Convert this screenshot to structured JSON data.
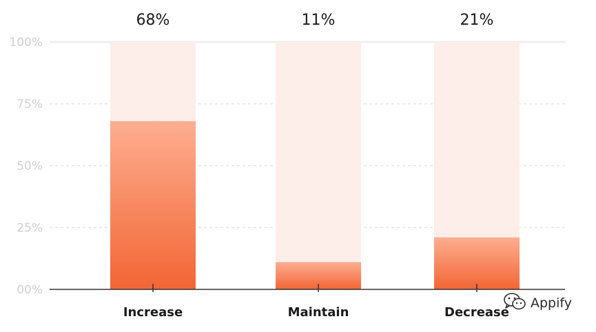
{
  "chart_data": {
    "type": "bar",
    "categories": [
      "Increase",
      "Maintain",
      "Decrease"
    ],
    "values": [
      68,
      11,
      21
    ],
    "value_labels": [
      "68%",
      "11%",
      "21%"
    ],
    "y_ticks": [
      {
        "value": 0,
        "label": "00%"
      },
      {
        "value": 25,
        "label": "25%"
      },
      {
        "value": 50,
        "label": "50%"
      },
      {
        "value": 75,
        "label": "75%"
      },
      {
        "value": 100,
        "label": "100%"
      }
    ],
    "ylim": [
      0,
      100
    ],
    "grid": true,
    "colors": {
      "bar_top": "#fdae90",
      "bar_bottom": "#f26535",
      "track": "#fdeee9",
      "grid": "#d6d6d6",
      "axis": "#333333",
      "tick_text": "#cfcfcf"
    }
  },
  "watermark": {
    "text": "Appify",
    "icon": "wechat-icon"
  }
}
